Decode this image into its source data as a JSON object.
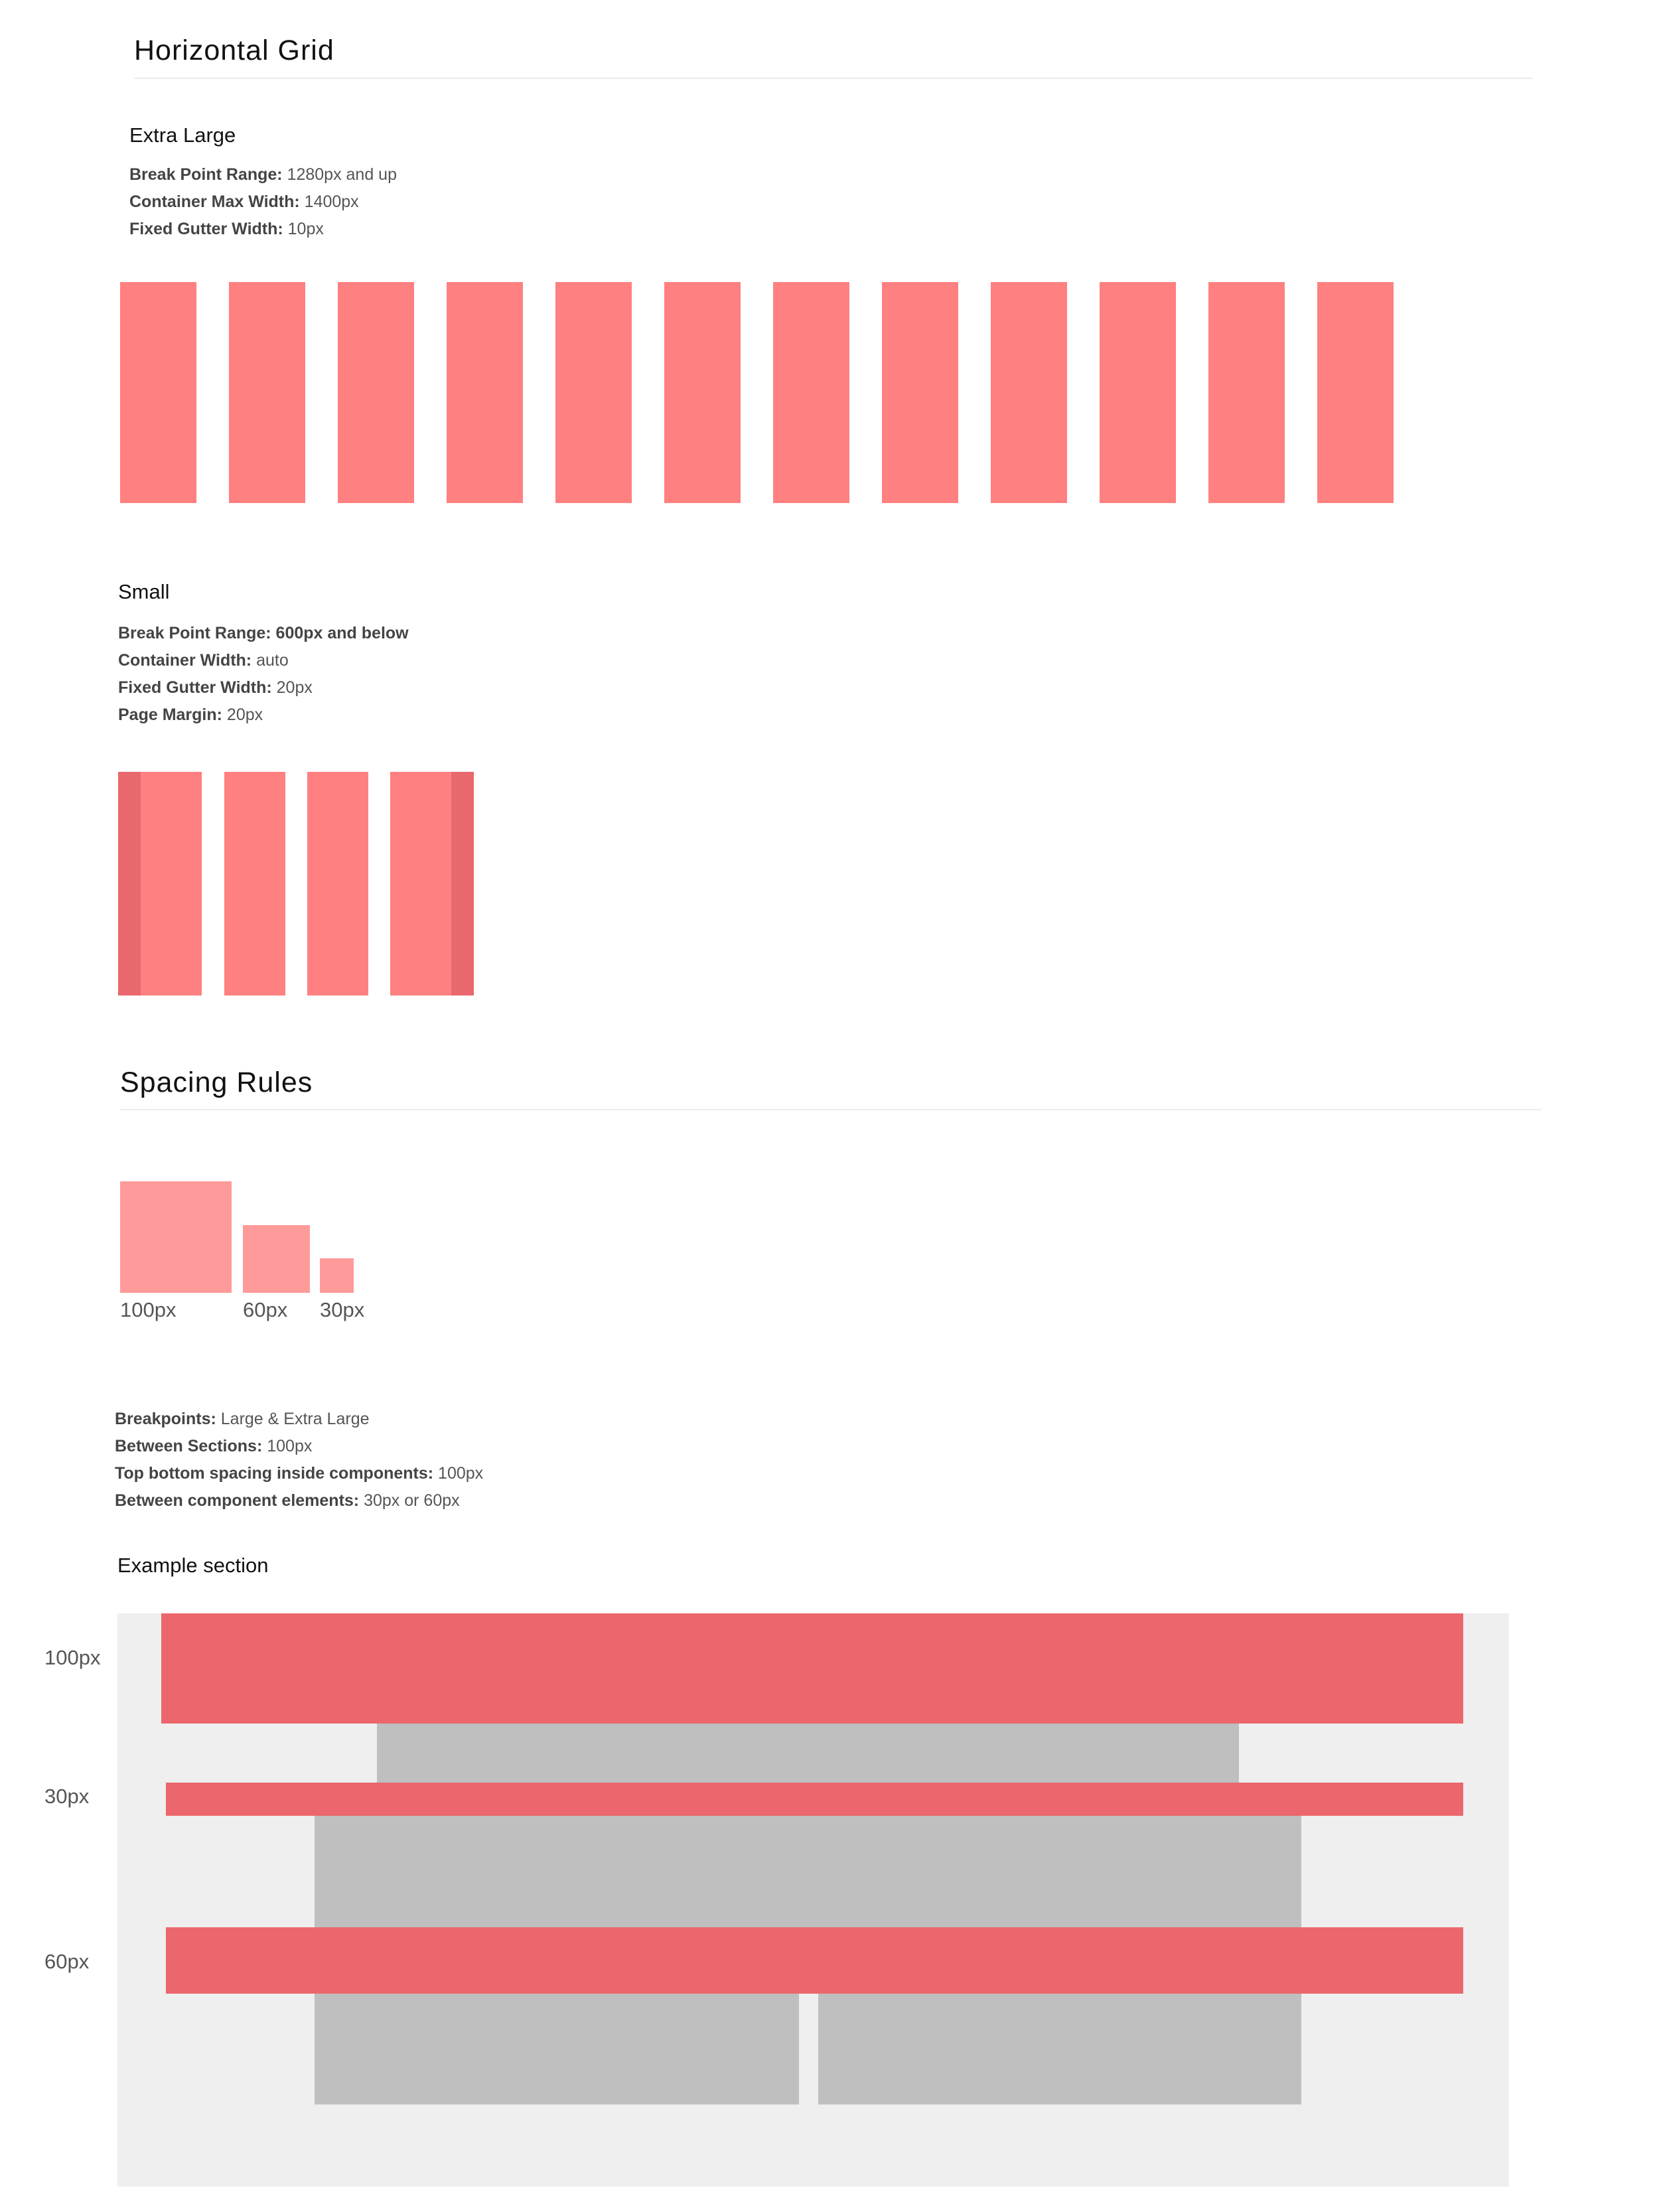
{
  "horizontal_grid": {
    "title": "Horizontal Grid",
    "extra_large": {
      "heading": "Extra Large",
      "specs": [
        {
          "label": "Break Point Range:",
          "value": " 1280px and up"
        },
        {
          "label": "Container Max Width:",
          "value": " 1400px"
        },
        {
          "label": "Fixed Gutter Width:",
          "value": " 10px"
        }
      ],
      "column_count": 12
    },
    "small": {
      "heading": "Small",
      "specs": [
        {
          "label": "Break Point Range: 600px and below",
          "value": ""
        },
        {
          "label": "Container Width:",
          "value": " auto"
        },
        {
          "label": "Fixed Gutter Width:",
          "value": " 20px"
        },
        {
          "label": "Page Margin:",
          "value": " 20px"
        }
      ],
      "column_count": 4
    }
  },
  "spacing_rules": {
    "title": "Spacing Rules",
    "swatches": [
      {
        "label": "100px"
      },
      {
        "label": "60px"
      },
      {
        "label": "30px"
      }
    ],
    "specs": [
      {
        "label": "Breakpoints:",
        "value": " Large & Extra Large"
      },
      {
        "label": "Between Sections:",
        "value": " 100px"
      },
      {
        "label": "Top bottom spacing inside components:",
        "value": " 100px"
      },
      {
        "label": "Between component elements:",
        "value": " 30px or 60px"
      }
    ]
  },
  "example_section": {
    "heading": "Example section",
    "side_labels": [
      "100px",
      "30px",
      "60px"
    ]
  },
  "colors": {
    "column": "#ff8080",
    "margin": "#e8686d",
    "swatch": "#ff9a9a",
    "spacer": "#eb676d",
    "content": "#bfbfbf",
    "section_bg": "#efefef"
  }
}
